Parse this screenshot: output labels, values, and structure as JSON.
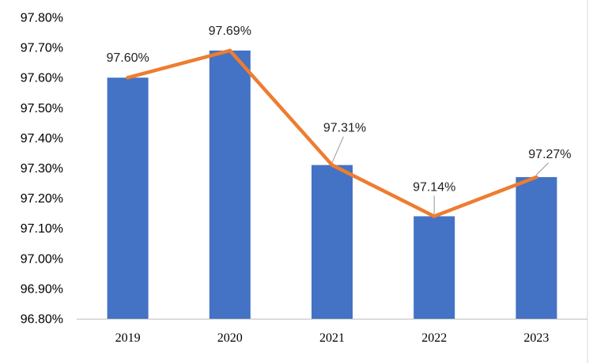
{
  "chart_data": {
    "type": "bar",
    "title": "",
    "xlabel": "",
    "ylabel": "",
    "categories": [
      "2019",
      "2020",
      "2021",
      "2022",
      "2023"
    ],
    "series": [
      {
        "name": "bar",
        "type": "bar",
        "values": [
          97.6,
          97.69,
          97.31,
          97.14,
          97.27
        ],
        "color": "#4472C4"
      },
      {
        "name": "line",
        "type": "line",
        "values": [
          97.6,
          97.69,
          97.31,
          97.14,
          97.27
        ],
        "color": "#ED7D31"
      }
    ],
    "data_labels": [
      "97.60%",
      "97.69%",
      "97.31%",
      "97.14%",
      "97.27%"
    ],
    "ylim": [
      96.8,
      97.8
    ],
    "ystep": 0.1,
    "ytick_labels": [
      "96.80%",
      "96.90%",
      "97.00%",
      "97.10%",
      "97.20%",
      "97.30%",
      "97.40%",
      "97.50%",
      "97.60%",
      "97.70%",
      "97.80%"
    ],
    "grid": false,
    "legend": "none"
  }
}
